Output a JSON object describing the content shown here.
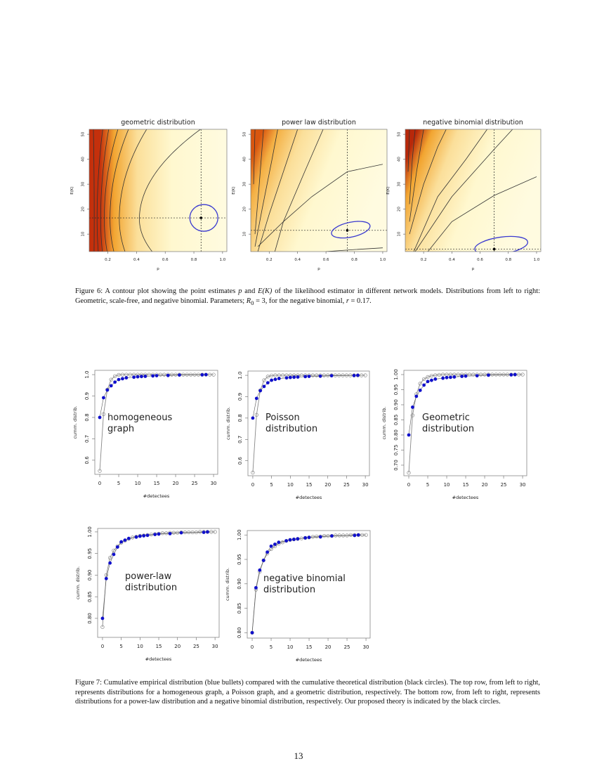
{
  "figure6": {
    "caption": {
      "label": "Figure 6:",
      "text_a": " A contour plot showing the point estimates ",
      "p": "p",
      "text_b": " and ",
      "ek": "E(K)",
      "text_c": " of the likelihood estimator in different network models. Distributions from left to right: Geometric, scale-free, and negative binomial. Parameters; ",
      "r0": "R",
      "r0_sub": "0",
      "text_d": " = 3, for the negative binomial, ",
      "r": "r",
      "text_e": " = 0.17."
    }
  },
  "figure7": {
    "caption": "Figure 7: Cumulative empirical distribution (blue bullets) compared with the cumulative theoretical distribution (black circles). The top row, from left to right, represents distributions for a homogeneous graph, a Poisson graph, and a geometric distribution, respectively. The bottom row, from left to right, represents distributions for a power-law distribution and a negative binomial distribution, respectively. Our proposed theory is indicated by the black circles."
  },
  "page_number": "13",
  "chart_data": [
    {
      "type": "contour",
      "title": "geometric distribution",
      "xlabel": "p",
      "ylabel": "E(K)",
      "xlim": [
        0.07,
        1.03
      ],
      "ylim": [
        3,
        52
      ],
      "xticks": [
        "0.2",
        "0.4",
        "0.6",
        "0.8",
        "1.0"
      ],
      "yticks": [
        "10",
        "20",
        "30",
        "40",
        "50"
      ],
      "estimate": {
        "p": 0.85,
        "EK": 16.5
      },
      "colors": {
        "high": "#c4300c",
        "mid": "#f2a531",
        "low": "#fff8cf",
        "confidence": "#3a3ad0"
      }
    },
    {
      "type": "contour",
      "title": "power law distribution",
      "xlabel": "p",
      "ylabel": "E(K)",
      "xlim": [
        0.07,
        1.03
      ],
      "ylim": [
        3,
        52
      ],
      "xticks": [
        "0.2",
        "0.4",
        "0.6",
        "0.8",
        "1.0"
      ],
      "yticks": [
        "10",
        "20",
        "30",
        "40",
        "50"
      ],
      "estimate": {
        "p": 0.75,
        "EK": 11.5
      },
      "colors": {
        "high": "#d9560f",
        "mid": "#f4b044",
        "low": "#fff8cf",
        "confidence": "#3a3ad0"
      }
    },
    {
      "type": "contour",
      "title": "negative binomial distribution",
      "xlabel": "p",
      "ylabel": "E(K)",
      "xlim": [
        0.07,
        1.03
      ],
      "ylim": [
        3,
        52
      ],
      "xticks": [
        "0.2",
        "0.4",
        "0.6",
        "0.8",
        "1.0"
      ],
      "yticks": [
        "10",
        "20",
        "30",
        "40",
        "50"
      ],
      "estimate": {
        "p": 0.7,
        "EK": 4
      },
      "colors": {
        "high": "#b8280a",
        "mid": "#f2a531",
        "low": "#fff8cf",
        "confidence": "#3a3ad0"
      }
    },
    {
      "type": "scatter-line",
      "label": [
        "homogeneous",
        "graph"
      ],
      "xlabel": "#detectees",
      "ylabel": "cumm. distrib.",
      "xlim": [
        -1.3,
        31.1
      ],
      "ylim": [
        0.534,
        1.02
      ],
      "xticks": [
        0,
        5,
        10,
        15,
        20,
        25,
        30
      ],
      "yticks": [
        "0.6",
        "0.7",
        "0.8",
        "0.9",
        "1.0"
      ],
      "empirical": {
        "x": [
          0,
          1,
          2,
          3,
          4,
          5,
          6,
          7,
          9,
          10,
          11,
          12,
          14,
          15,
          18,
          21,
          27,
          28
        ],
        "y": [
          0.8,
          0.892,
          0.928,
          0.948,
          0.965,
          0.977,
          0.981,
          0.985,
          0.988,
          0.99,
          0.991,
          0.992,
          0.994,
          0.995,
          0.996,
          0.998,
          0.999,
          1.0
        ]
      },
      "theoretical": [
        0.55,
        0.815,
        0.93,
        0.977,
        0.993,
        0.999,
        1,
        1,
        1,
        1,
        1,
        1,
        1,
        1,
        1,
        1,
        1,
        1,
        1,
        1,
        1,
        1,
        1,
        1,
        1,
        1,
        1,
        1,
        1,
        1,
        1
      ]
    },
    {
      "type": "scatter-line",
      "label": [
        "Poisson",
        "distribution"
      ],
      "xlabel": "#detectees",
      "ylabel": "cumm. distrib.",
      "xlim": [
        -1.3,
        31.1
      ],
      "ylim": [
        0.53,
        1.02
      ],
      "xticks": [
        0,
        5,
        10,
        15,
        20,
        25,
        30
      ],
      "yticks": [
        "0.6",
        "0.7",
        "0.8",
        "0.9",
        "1.0"
      ],
      "empirical": {
        "x": [
          0,
          1,
          2,
          3,
          4,
          5,
          6,
          7,
          9,
          10,
          11,
          12,
          14,
          15,
          18,
          21,
          27,
          28
        ],
        "y": [
          0.8,
          0.892,
          0.928,
          0.948,
          0.965,
          0.977,
          0.981,
          0.985,
          0.988,
          0.99,
          0.991,
          0.992,
          0.994,
          0.995,
          0.996,
          0.998,
          0.999,
          1.0
        ]
      },
      "theoretical": [
        0.545,
        0.815,
        0.93,
        0.977,
        0.994,
        0.999,
        1,
        1,
        1,
        1,
        1,
        1,
        1,
        1,
        1,
        1,
        1,
        1,
        1,
        1,
        1,
        1,
        1,
        1,
        1,
        1,
        1,
        1,
        1,
        1,
        1
      ]
    },
    {
      "type": "scatter-line",
      "label": [
        "Geometric",
        "distribution"
      ],
      "xlabel": "#detectees",
      "ylabel": "cumm. distrib.",
      "xlim": [
        -1.3,
        31.1
      ],
      "ylim": [
        0.665,
        1.014
      ],
      "xticks": [
        0,
        5,
        10,
        15,
        20,
        25,
        30
      ],
      "yticks": [
        "0.70",
        "0.75",
        "0.80",
        "0.85",
        "0.90",
        "0.95",
        "1.00"
      ],
      "empirical": {
        "x": [
          0,
          1,
          2,
          3,
          4,
          5,
          6,
          7,
          9,
          10,
          11,
          12,
          14,
          15,
          18,
          21,
          27,
          28
        ],
        "y": [
          0.8,
          0.892,
          0.928,
          0.948,
          0.965,
          0.977,
          0.981,
          0.985,
          0.988,
          0.99,
          0.991,
          0.992,
          0.994,
          0.995,
          0.996,
          0.998,
          0.999,
          1.0
        ]
      },
      "theoretical": [
        0.675,
        0.865,
        0.935,
        0.97,
        0.985,
        0.992,
        0.996,
        0.998,
        0.999,
        1,
        1,
        1,
        1,
        1,
        1,
        1,
        1,
        1,
        1,
        1,
        1,
        1,
        1,
        1,
        1,
        1,
        1,
        1,
        1,
        1,
        1
      ]
    },
    {
      "type": "scatter-line",
      "label": [
        "power-law",
        "distribution"
      ],
      "xlabel": "#detectees",
      "ylabel": "cumm. distrib.",
      "xlim": [
        -1.3,
        31.1
      ],
      "ylim": [
        0.756,
        1.008
      ],
      "xticks": [
        0,
        5,
        10,
        15,
        20,
        25,
        30
      ],
      "yticks": [
        "0.80",
        "0.85",
        "0.90",
        "0.95",
        "1.00"
      ],
      "empirical": {
        "x": [
          0,
          1,
          2,
          3,
          4,
          5,
          6,
          7,
          9,
          10,
          11,
          12,
          14,
          15,
          18,
          21,
          27,
          28
        ],
        "y": [
          0.8,
          0.892,
          0.928,
          0.948,
          0.965,
          0.977,
          0.981,
          0.985,
          0.988,
          0.99,
          0.991,
          0.992,
          0.994,
          0.995,
          0.996,
          0.998,
          0.999,
          1.0
        ]
      },
      "theoretical": [
        0.78,
        0.9,
        0.94,
        0.957,
        0.967,
        0.975,
        0.98,
        0.984,
        0.987,
        0.989,
        0.991,
        0.992,
        0.993,
        0.994,
        0.995,
        0.996,
        0.997,
        0.997,
        0.998,
        0.998,
        0.998,
        0.999,
        0.999,
        0.999,
        0.999,
        0.999,
        1,
        1,
        1,
        1,
        1
      ]
    },
    {
      "type": "scatter-line",
      "label": [
        "negative binomial",
        "distribution"
      ],
      "xlabel": "#detectees",
      "ylabel": "cumm. distrib.",
      "xlim": [
        -1.3,
        31.1
      ],
      "ylim": [
        0.789,
        1.009
      ],
      "xticks": [
        0,
        5,
        10,
        15,
        20,
        25,
        30
      ],
      "yticks": [
        "0.80",
        "0.85",
        "0.90",
        "0.95",
        "1.00"
      ],
      "empirical": {
        "x": [
          0,
          1,
          2,
          3,
          4,
          5,
          6,
          7,
          9,
          10,
          11,
          12,
          14,
          15,
          18,
          21,
          27,
          28
        ],
        "y": [
          0.8,
          0.892,
          0.928,
          0.948,
          0.965,
          0.977,
          0.981,
          0.985,
          0.988,
          0.99,
          0.991,
          0.992,
          0.994,
          0.995,
          0.996,
          0.998,
          0.999,
          1.0
        ]
      },
      "theoretical": [
        0.8,
        0.888,
        0.925,
        0.948,
        0.962,
        0.971,
        0.977,
        0.982,
        0.985,
        0.988,
        0.99,
        0.991,
        0.992,
        0.993,
        0.994,
        0.995,
        0.996,
        0.997,
        0.997,
        0.998,
        0.998,
        0.998,
        0.999,
        0.999,
        0.999,
        0.999,
        1,
        1,
        1,
        1,
        1
      ]
    }
  ]
}
